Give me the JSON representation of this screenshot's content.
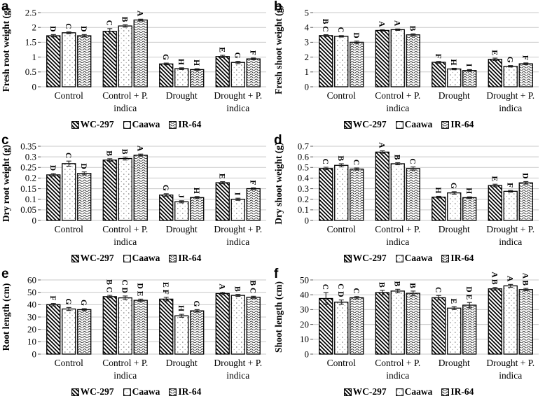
{
  "figure": {
    "series": [
      "WC-297",
      "Caawa",
      "IR-64"
    ],
    "series_patterns": [
      "diagonal-stripes",
      "sparse-dots",
      "wavy-lines"
    ],
    "colors": {
      "background": "#ffffff",
      "bar_stroke": "#000000",
      "gridline": "#c9c9c9",
      "tick": "#595959",
      "error_bar": "#222222",
      "text": "#000000"
    }
  },
  "chart_data": [
    {
      "type": "bar",
      "panel": "a",
      "ylabel": "Fresh root weight (g)",
      "ylim": [
        0,
        2.5
      ],
      "yticks": [
        "0",
        "0.5",
        "1",
        "1.5",
        "2",
        "2.5"
      ],
      "grid": true,
      "legend_position": "bottom",
      "categories": [
        [
          "Control"
        ],
        [
          "Control + P.",
          "indica"
        ],
        [
          "Drought"
        ],
        [
          "Drought + P.",
          "indica"
        ]
      ],
      "series": [
        {
          "name": "WC-297",
          "pattern": "diagonal-stripes",
          "values": [
            1.72,
            1.87,
            0.77,
            1.02
          ],
          "errors": [
            0.04,
            0.09,
            0.03,
            0.04
          ],
          "letters": [
            "D",
            "C",
            "G",
            "E"
          ]
        },
        {
          "name": "Caawa",
          "pattern": "sparse-dots",
          "values": [
            1.82,
            2.05,
            0.61,
            0.82
          ],
          "errors": [
            0.03,
            0.04,
            0.03,
            0.04
          ],
          "letters": [
            "C",
            "B",
            "H",
            "G"
          ]
        },
        {
          "name": "IR-64",
          "pattern": "wavy-lines",
          "values": [
            1.72,
            2.25,
            0.58,
            0.94
          ],
          "errors": [
            0.04,
            0.03,
            0.03,
            0.03
          ],
          "letters": [
            "D",
            "A",
            "H",
            "F"
          ]
        }
      ]
    },
    {
      "type": "bar",
      "panel": "b",
      "ylabel": "Fresh shoot weight (g)",
      "ylim": [
        0,
        5
      ],
      "yticks": [
        "0",
        "1",
        "2",
        "3",
        "4",
        "5"
      ],
      "grid": true,
      "legend_position": "bottom",
      "categories": [
        [
          "Control"
        ],
        [
          "Control + P.",
          "indica"
        ],
        [
          "Drought"
        ],
        [
          "Drought + P.",
          "indica"
        ]
      ],
      "series": [
        {
          "name": "WC-297",
          "pattern": "diagonal-stripes",
          "values": [
            3.45,
            3.8,
            1.65,
            1.85
          ],
          "errors": [
            0.06,
            0.05,
            0.06,
            0.08
          ],
          "letters": [
            "B C",
            "A",
            "F",
            "E"
          ]
        },
        {
          "name": "Caawa",
          "pattern": "sparse-dots",
          "values": [
            3.4,
            3.85,
            1.2,
            1.38
          ],
          "errors": [
            0.05,
            0.05,
            0.05,
            0.05
          ],
          "letters": [
            "C",
            "A",
            "H",
            "G"
          ]
        },
        {
          "name": "IR-64",
          "pattern": "wavy-lines",
          "values": [
            3.0,
            3.5,
            1.1,
            1.55
          ],
          "errors": [
            0.08,
            0.07,
            0.06,
            0.06
          ],
          "letters": [
            "D",
            "B",
            "I",
            "F"
          ]
        }
      ]
    },
    {
      "type": "bar",
      "panel": "c",
      "ylabel": "Dry root weight (g)",
      "ylim": [
        0,
        0.35
      ],
      "yticks": [
        "0",
        "0.05",
        "0.1",
        "0.15",
        "0.2",
        "0.25",
        "0.3",
        "0.35"
      ],
      "grid": true,
      "legend_position": "bottom",
      "categories": [
        [
          "Control"
        ],
        [
          "Control + P.",
          "indica"
        ],
        [
          "Drought"
        ],
        [
          "Drought + P.",
          "indica"
        ]
      ],
      "series": [
        {
          "name": "WC-297",
          "pattern": "diagonal-stripes",
          "values": [
            0.215,
            0.285,
            0.12,
            0.178
          ],
          "errors": [
            0.006,
            0.006,
            0.006,
            0.005
          ],
          "letters": [
            "D",
            "B",
            "G",
            "E"
          ]
        },
        {
          "name": "Caawa",
          "pattern": "sparse-dots",
          "values": [
            0.268,
            0.292,
            0.088,
            0.1
          ],
          "errors": [
            0.012,
            0.007,
            0.005,
            0.005
          ],
          "letters": [
            "C",
            "B",
            "J",
            "I"
          ]
        },
        {
          "name": "IR-64",
          "pattern": "wavy-lines",
          "values": [
            0.222,
            0.308,
            0.108,
            0.15
          ],
          "errors": [
            0.007,
            0.005,
            0.005,
            0.004
          ],
          "letters": [
            "D",
            "A",
            "H",
            "F"
          ]
        }
      ]
    },
    {
      "type": "bar",
      "panel": "d",
      "ylabel": "Dry shoot weight (g)",
      "ylim": [
        0,
        0.7
      ],
      "yticks": [
        "0",
        "0.1",
        "0.2",
        "0.3",
        "0.4",
        "0.5",
        "0.6",
        "0.7"
      ],
      "grid": true,
      "legend_position": "bottom",
      "categories": [
        [
          "Control"
        ],
        [
          "Control + P.",
          "indica"
        ],
        [
          "Drought"
        ],
        [
          "Drought + P.",
          "indica"
        ]
      ],
      "series": [
        {
          "name": "WC-297",
          "pattern": "diagonal-stripes",
          "values": [
            0.49,
            0.645,
            0.22,
            0.33
          ],
          "errors": [
            0.012,
            0.012,
            0.008,
            0.012
          ],
          "letters": [
            "C",
            "A",
            "H",
            "E"
          ]
        },
        {
          "name": "Caawa",
          "pattern": "sparse-dots",
          "values": [
            0.52,
            0.535,
            0.26,
            0.275
          ],
          "errors": [
            0.015,
            0.01,
            0.012,
            0.008
          ],
          "letters": [
            "B",
            "B",
            "G",
            "F"
          ]
        },
        {
          "name": "IR-64",
          "pattern": "wavy-lines",
          "values": [
            0.485,
            0.49,
            0.215,
            0.355
          ],
          "errors": [
            0.01,
            0.015,
            0.008,
            0.012
          ],
          "letters": [
            "C",
            "C",
            "H",
            "D"
          ]
        }
      ]
    },
    {
      "type": "bar",
      "panel": "e",
      "ylabel": "Root length (cm)",
      "ylim": [
        0,
        60
      ],
      "yticks": [
        "0",
        "10",
        "20",
        "30",
        "40",
        "50",
        "60"
      ],
      "grid": true,
      "legend_position": "bottom",
      "categories": [
        [
          "Control"
        ],
        [
          "Control + P.",
          "indica"
        ],
        [
          "Drought"
        ],
        [
          "Drought + P.",
          "indica"
        ]
      ],
      "series": [
        {
          "name": "WC-297",
          "pattern": "diagonal-stripes",
          "values": [
            40,
            46.5,
            44.5,
            49
          ],
          "errors": [
            1,
            1,
            1.5,
            1
          ],
          "letters": [
            "F",
            "B C",
            "E F",
            "A"
          ]
        },
        {
          "name": "Caawa",
          "pattern": "sparse-dots",
          "values": [
            36.5,
            45.5,
            31,
            47.5
          ],
          "errors": [
            1.2,
            1.5,
            1.2,
            0.8
          ],
          "letters": [
            "G",
            "C D",
            "H",
            "B"
          ]
        },
        {
          "name": "IR-64",
          "pattern": "wavy-lines",
          "values": [
            36,
            43.5,
            35,
            46
          ],
          "errors": [
            0.8,
            1,
            1,
            0.8
          ],
          "letters": [
            "G",
            "D E",
            "G",
            "B C"
          ]
        }
      ]
    },
    {
      "type": "bar",
      "panel": "f",
      "ylabel": "Shoot length (cm)",
      "ylim": [
        0,
        50
      ],
      "yticks": [
        "0",
        "10",
        "20",
        "30",
        "40",
        "50"
      ],
      "grid": true,
      "legend_position": "bottom",
      "categories": [
        [
          "Control"
        ],
        [
          "Control + P.",
          "indica"
        ],
        [
          "Drought"
        ],
        [
          "Drought + P.",
          "indica"
        ]
      ],
      "series": [
        {
          "name": "WC-297",
          "pattern": "diagonal-stripes",
          "values": [
            37.5,
            41.5,
            38,
            44
          ],
          "errors": [
            4,
            1.5,
            1.5,
            1
          ],
          "letters": [
            "C",
            "B",
            "C",
            "A B"
          ]
        },
        {
          "name": "Caawa",
          "pattern": "sparse-dots",
          "values": [
            35,
            42.5,
            31,
            46
          ],
          "errors": [
            1.5,
            1.2,
            1,
            1
          ],
          "letters": [
            "C D",
            "B",
            "E",
            "A"
          ]
        },
        {
          "name": "IR-64",
          "pattern": "wavy-lines",
          "values": [
            38,
            41,
            33,
            43.5
          ],
          "errors": [
            0.8,
            1.5,
            1.8,
            0.8
          ],
          "letters": [
            "C",
            "B",
            "D E",
            "A B"
          ]
        }
      ]
    }
  ]
}
